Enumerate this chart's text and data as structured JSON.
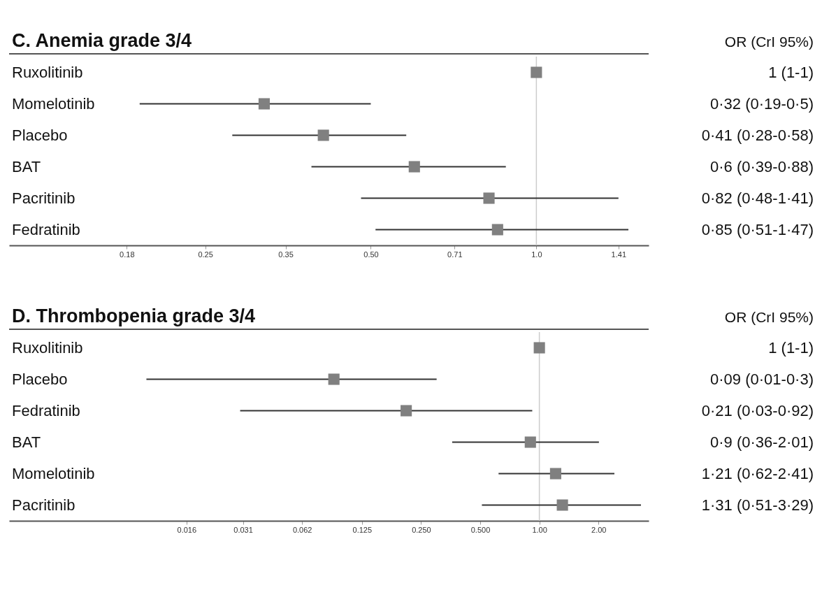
{
  "chart_data": [
    {
      "type": "scatter",
      "orientation": "horizontal",
      "title": "C.  Anemia grade 3/4",
      "annotations": [
        "OR (CrI 95%)"
      ],
      "categories": [
        "Ruxolitinib",
        "Momelotinib",
        "Placebo",
        "BAT",
        "Pacritinib",
        "Fedratinib"
      ],
      "values": [
        1,
        0.32,
        0.41,
        0.6,
        0.82,
        0.85
      ],
      "errors": [
        [
          1,
          1
        ],
        [
          0.19,
          0.5
        ],
        [
          0.28,
          0.58
        ],
        [
          0.39,
          0.88
        ],
        [
          0.48,
          1.41
        ],
        [
          0.51,
          1.47
        ]
      ],
      "value_labels": [
        "1 (1-1)",
        "0·32 (0·19-0·5)",
        "0·41 (0·28-0·58)",
        "0·6 (0·39-0·88)",
        "0·82 (0·48-1·41)",
        "0·85 (0·51-1·47)"
      ],
      "color": "#808080",
      "log": "x",
      "xlim": [
        0.11,
        1.6
      ],
      "xticks": [
        0.18,
        0.25,
        0.35,
        {
          "value": 0.5,
          "label": "0.50"
        },
        0.71,
        {
          "value": 1,
          "label": "1.0"
        },
        1.41
      ],
      "ref_lines": [
        {
          "axis": "x",
          "value": 1,
          "color": "#cccccc"
        }
      ],
      "marker": "square",
      "grid": false
    },
    {
      "type": "scatter",
      "orientation": "horizontal",
      "title": "D. Thrombopenia grade 3/4",
      "annotations": [
        "OR (CrI 95%)"
      ],
      "categories": [
        "Ruxolitinib",
        "Placebo",
        "Fedratinib",
        "BAT",
        "Momelotinib",
        "Pacritinib"
      ],
      "values": [
        1,
        0.09,
        0.21,
        0.9,
        1.21,
        1.31
      ],
      "errors": [
        [
          1,
          1
        ],
        [
          0.01,
          0.3
        ],
        [
          0.03,
          0.92
        ],
        [
          0.36,
          2.01
        ],
        [
          0.62,
          2.41
        ],
        [
          0.51,
          3.29
        ]
      ],
      "value_labels": [
        "1 (1-1)",
        "0·09 (0·01-0·3)",
        "0·21 (0·03-0·92)",
        "0·9 (0·36-2·01)",
        "1·21 (0·62-2·41)",
        "1·31 (0·51-3·29)"
      ],
      "color": "#808080",
      "log": "x",
      "xlim": [
        0.002,
        3.6
      ],
      "xticks": [
        0.016,
        0.031,
        0.062,
        0.125,
        {
          "value": 0.25,
          "label": "0.250"
        },
        {
          "value": 0.5,
          "label": "0.500"
        },
        {
          "value": 1,
          "label": "1.00"
        },
        {
          "value": 2,
          "label": "2.00"
        }
      ],
      "ref_lines": [
        {
          "axis": "x",
          "value": 1,
          "color": "#cccccc"
        }
      ],
      "marker": "square",
      "grid": false
    }
  ]
}
